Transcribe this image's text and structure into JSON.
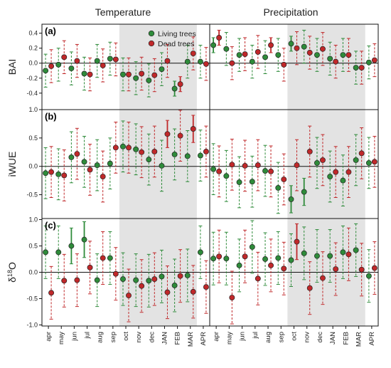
{
  "chart_data": {
    "type": "scatter",
    "column_titles": [
      "Temperature",
      "Precipitation"
    ],
    "months": [
      "apr",
      "may",
      "jun",
      "jul",
      "aug",
      "sep",
      "oct",
      "nov",
      "dec",
      "JAN",
      "FEB",
      "MAR",
      "APR"
    ],
    "legend": [
      {
        "label": "Living trees",
        "color": "#2e8b3a"
      },
      {
        "label": "Dead trees",
        "color": "#c0282a"
      }
    ],
    "colors": {
      "living": "#2e8b3a",
      "dead": "#c0282a",
      "shade": "#e3e3e3"
    },
    "shaded_months": [
      "oct",
      "nov",
      "dec",
      "JAN",
      "FEB",
      "MAR"
    ],
    "panels": [
      {
        "label": "(a)",
        "ylabel": "BAI",
        "ylim": [
          -0.62,
          0.52
        ],
        "yticks": [
          -0.4,
          -0.2,
          0.0,
          0.2,
          0.4
        ],
        "ytick_labels": [
          "-0.4",
          "-0.2",
          "0.0",
          "0.2",
          "0.4"
        ],
        "temperature": {
          "living": [
            -0.1,
            -0.02,
            -0.07,
            -0.14,
            0.03,
            0.06,
            -0.15,
            -0.2,
            -0.23,
            -0.08,
            -0.34,
            0.02,
            0.02
          ],
          "dead": [
            -0.04,
            0.08,
            0.03,
            -0.15,
            -0.03,
            0.05,
            -0.15,
            -0.14,
            -0.16,
            0.03,
            -0.28,
            0.13,
            -0.01
          ],
          "living_sig": [
            false,
            false,
            false,
            false,
            false,
            false,
            false,
            false,
            false,
            false,
            true,
            false,
            false
          ],
          "dead_sig": [
            false,
            false,
            false,
            false,
            false,
            false,
            false,
            false,
            false,
            false,
            true,
            false,
            false
          ]
        },
        "precipitation": {
          "living": [
            0.24,
            0.19,
            0.11,
            0.02,
            0.08,
            0.11,
            0.26,
            0.22,
            0.11,
            0.06,
            0.11,
            -0.06,
            0.01
          ],
          "dead": [
            0.34,
            0.0,
            0.12,
            0.15,
            0.24,
            -0.02,
            0.2,
            0.14,
            0.19,
            0.02,
            0.11,
            -0.06,
            0.04
          ],
          "living_sig": [
            true,
            false,
            false,
            false,
            false,
            false,
            true,
            false,
            false,
            false,
            false,
            false,
            false
          ],
          "dead_sig": [
            true,
            false,
            false,
            false,
            true,
            false,
            false,
            false,
            false,
            false,
            false,
            false,
            false
          ]
        }
      },
      {
        "label": "(b)",
        "ylabel": "iWUE",
        "ylim": [
          -0.92,
          1.0
        ],
        "yticks": [
          -0.5,
          0.0,
          0.5,
          1.0
        ],
        "ytick_labels": [
          "-0.5",
          "0.0",
          "0.5",
          "1.0"
        ],
        "temperature": {
          "living": [
            -0.12,
            -0.14,
            0.16,
            0.08,
            0.02,
            0.05,
            0.35,
            0.3,
            0.12,
            0.01,
            0.21,
            0.18,
            0.19
          ],
          "dead": [
            -0.1,
            -0.16,
            0.22,
            -0.06,
            -0.18,
            0.33,
            0.33,
            0.25,
            0.26,
            0.57,
            0.54,
            0.66,
            0.26
          ],
          "living_sig": [
            false,
            false,
            false,
            false,
            false,
            false,
            false,
            false,
            false,
            false,
            false,
            false,
            false
          ],
          "dead_sig": [
            false,
            false,
            false,
            false,
            false,
            false,
            false,
            false,
            false,
            true,
            false,
            true,
            false
          ]
        },
        "precipitation": {
          "living": [
            -0.05,
            -0.17,
            -0.28,
            -0.27,
            -0.08,
            -0.38,
            -0.58,
            -0.45,
            0.06,
            -0.18,
            -0.25,
            0.11,
            0.06
          ],
          "dead": [
            -0.09,
            0.03,
            0.01,
            0.02,
            -0.09,
            -0.23,
            0.02,
            0.26,
            0.11,
            -0.1,
            -0.1,
            0.23,
            0.08
          ],
          "living_sig": [
            false,
            false,
            false,
            false,
            false,
            false,
            true,
            true,
            false,
            false,
            false,
            false,
            false
          ],
          "dead_sig": [
            false,
            false,
            false,
            false,
            false,
            false,
            false,
            false,
            false,
            false,
            false,
            false,
            false
          ]
        }
      },
      {
        "label": "(c)",
        "ylabel": "δ18O",
        "ylim": [
          -1.02,
          1.02
        ],
        "yticks": [
          -1.0,
          -0.5,
          0.0,
          0.5,
          1.0
        ],
        "ytick_labels": [
          "-1.0",
          "-0.5",
          "0.0",
          "0.5",
          "1.0"
        ],
        "temperature": {
          "living": [
            0.38,
            0.38,
            0.5,
            0.62,
            -0.15,
            0.27,
            -0.13,
            -0.15,
            -0.16,
            -0.08,
            -0.25,
            -0.06,
            0.38
          ],
          "dead": [
            -0.39,
            -0.16,
            -0.15,
            0.09,
            0.27,
            -0.03,
            -0.44,
            -0.26,
            -0.13,
            -0.38,
            -0.07,
            -0.37,
            -0.28
          ],
          "living_sig": [
            false,
            false,
            true,
            true,
            false,
            false,
            false,
            false,
            false,
            false,
            false,
            false,
            false
          ],
          "dead_sig": [
            false,
            false,
            false,
            false,
            false,
            false,
            false,
            false,
            false,
            false,
            false,
            false,
            false
          ]
        },
        "precipitation": {
          "living": [
            0.26,
            0.26,
            0.13,
            0.48,
            0.25,
            0.27,
            0.23,
            0.36,
            0.31,
            0.31,
            0.38,
            0.42,
            -0.07
          ],
          "dead": [
            0.3,
            -0.48,
            0.3,
            -0.12,
            0.13,
            0.07,
            0.58,
            -0.3,
            -0.11,
            0.06,
            0.34,
            0.05,
            0.08
          ],
          "living_sig": [
            false,
            false,
            false,
            false,
            false,
            false,
            false,
            false,
            false,
            false,
            false,
            false,
            false
          ],
          "dead_sig": [
            false,
            false,
            false,
            false,
            false,
            false,
            true,
            false,
            false,
            false,
            false,
            false,
            false
          ]
        }
      }
    ]
  }
}
